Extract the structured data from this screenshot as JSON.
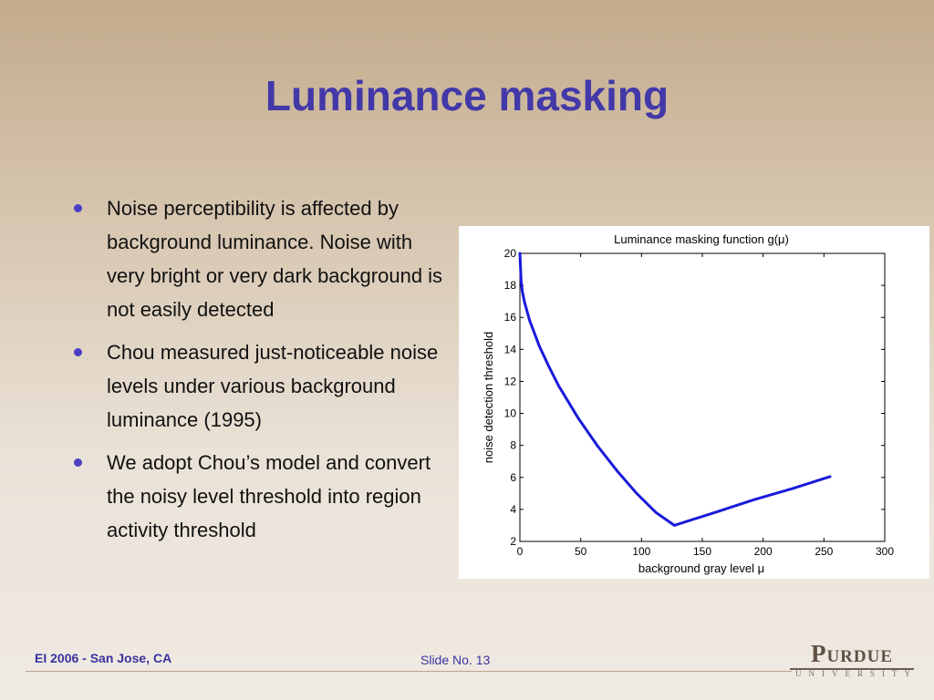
{
  "slide": {
    "title": "Luminance masking",
    "bullets": [
      "Noise perceptibility is affected by background luminance. Noise with very bright or very dark background is not easily detected",
      "Chou measured just-noticeable noise levels under various background luminance (1995)",
      "We adopt Chou’s model and convert the noisy level threshold into region activity threshold"
    ],
    "footer_left": "EI 2006 - San Jose, CA",
    "footer_center": "Slide No. 13",
    "logo_word": "Purdue",
    "logo_sub": "UNIVERSITY"
  },
  "colors": {
    "title": "#4238a8",
    "bullet": "#4a3fc4",
    "series": "#1a1adb",
    "logo": "#5f5244"
  },
  "chart_data": {
    "type": "line",
    "title": "Luminance masking function g(μ)",
    "xlabel": "background gray level μ",
    "ylabel": "noise detection threshold",
    "xlim": [
      0,
      300
    ],
    "ylim": [
      2,
      20
    ],
    "xticks": [
      0,
      50,
      100,
      150,
      200,
      250,
      300
    ],
    "yticks": [
      2,
      4,
      6,
      8,
      10,
      12,
      14,
      16,
      18,
      20
    ],
    "grid": false,
    "series": [
      {
        "values": [
          [
            0,
            20
          ],
          [
            1,
            18.3
          ],
          [
            2,
            17.6
          ],
          [
            4,
            16.9
          ],
          [
            8,
            15.8
          ],
          [
            16,
            14.2
          ],
          [
            24,
            12.9
          ],
          [
            32,
            11.7
          ],
          [
            48,
            9.7
          ],
          [
            64,
            7.95
          ],
          [
            80,
            6.4
          ],
          [
            96,
            5.0
          ],
          [
            112,
            3.8
          ],
          [
            127,
            3.0
          ],
          [
            160,
            3.8
          ],
          [
            192,
            4.6
          ],
          [
            224,
            5.3
          ],
          [
            255,
            6.05
          ]
        ]
      }
    ]
  }
}
